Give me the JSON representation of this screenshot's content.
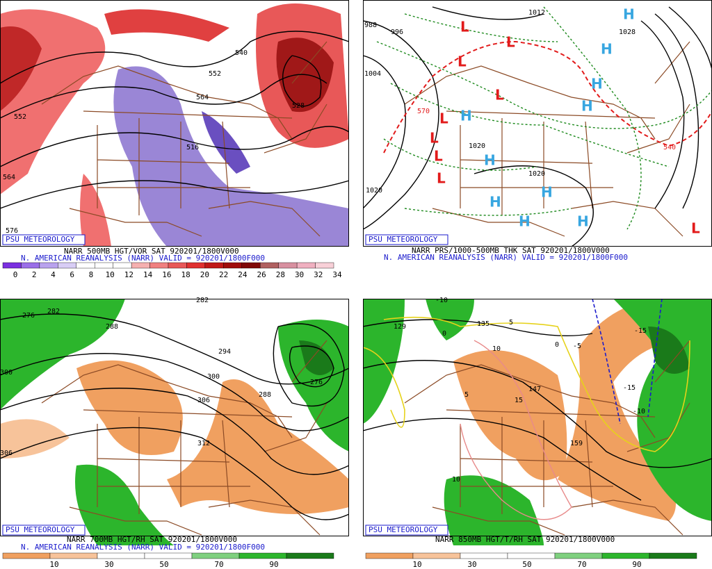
{
  "panels": [
    {
      "credit": "PSU METEOROLOGY",
      "caption": "NARR 500MB HGT/VOR SAT 920201/1800V000",
      "subcaption": "N. AMERICAN REANALYSIS (NARR) VALID = 920201/1800F000",
      "colorbar": [
        "0",
        "2",
        "4",
        "6",
        "8",
        "10",
        "12",
        "14",
        "16",
        "18",
        "20",
        "22",
        "24",
        "26",
        "28",
        "30",
        "32",
        "34"
      ],
      "labels": [
        "552",
        "528",
        "540",
        "552",
        "564",
        "516",
        "564",
        "576"
      ]
    },
    {
      "credit": "PSU METEOROLOGY",
      "caption": "NARR PRS/1000-500MB THK SAT 920201/1800V000",
      "subcaption": "N. AMERICAN REANALYSIS (NARR) VALID = 920201/1800F000",
      "labels": [
        "988",
        "996",
        "1012",
        "1004",
        "1020",
        "1020",
        "1028",
        "570",
        "540",
        "1020"
      ],
      "lows": [
        "L",
        "L",
        "L",
        "L",
        "L",
        "L",
        "L",
        "L",
        "L"
      ],
      "highs": [
        "H",
        "H",
        "H",
        "H",
        "H",
        "H",
        "H",
        "H",
        "H",
        "H"
      ]
    },
    {
      "credit": "PSU METEOROLOGY",
      "caption": "NARR 700MB HGT/RH SAT 920201/1800V000",
      "subcaption": "N. AMERICAN REANALYSIS (NARR) VALID = 920201/1800F000",
      "colorbar": [
        "10",
        "30",
        "50",
        "70",
        "90"
      ],
      "labels": [
        "276",
        "282",
        "288",
        "282",
        "294",
        "300",
        "300",
        "306",
        "312",
        "288",
        "276",
        "306"
      ]
    },
    {
      "credit": "PSU METEOROLOGY",
      "caption": "NARR 850MB HGT/T/RH SAT 920201/1800V000",
      "colorbar": [
        "10",
        "30",
        "50",
        "70",
        "90"
      ],
      "labels": [
        "129",
        "135",
        "147",
        "159",
        "-10",
        "-5",
        "-15",
        "-15",
        "-10",
        "5",
        "5",
        "10",
        "15",
        "10",
        "0",
        "0"
      ]
    }
  ]
}
